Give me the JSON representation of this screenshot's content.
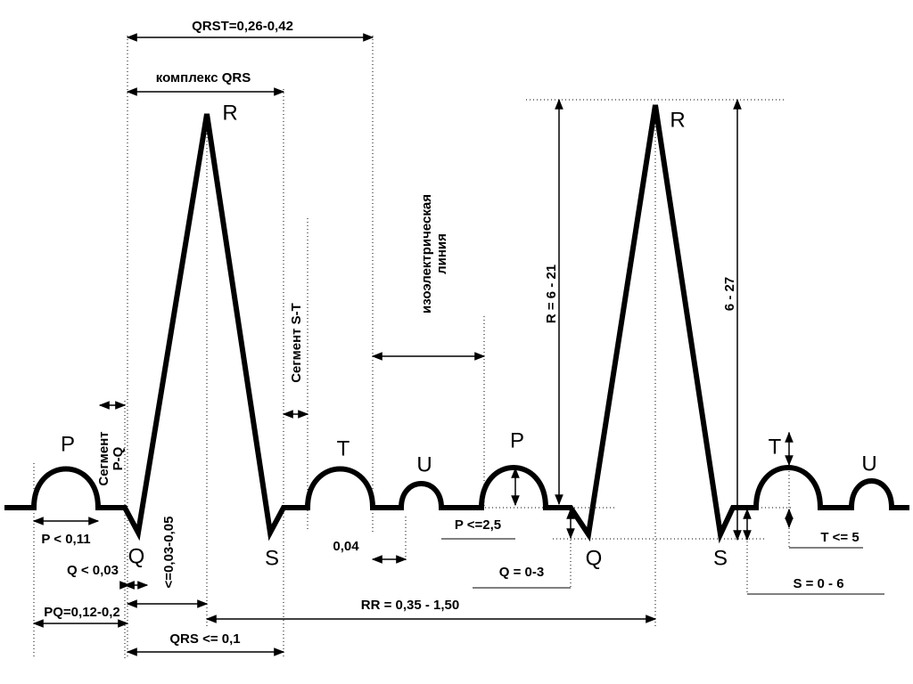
{
  "waves": [
    "P",
    "Q",
    "R",
    "S",
    "T",
    "U",
    "P",
    "Q",
    "R",
    "S",
    "T",
    "U"
  ],
  "intervals": {
    "qrst": "QRST=0,26-0,42",
    "qrs_complex": "комплекс QRS",
    "pq_segment": [
      "Сегмент",
      "P-Q"
    ],
    "st_segment": "Сегмент S-T",
    "isoelectric": [
      "изоэлектрическая",
      "линия"
    ],
    "p_duration": "P < 0,11",
    "q_duration": "Q < 0,03",
    "pq": "PQ=0,12-0,2",
    "intrinsicoid": "<=0,03-0,05",
    "qrs": "QRS <= 0,1",
    "t_u": "0,04",
    "rr": "RR = 0,35 - 1,50",
    "p_amp": "P <=2,5",
    "q_amp": "Q = 0-3",
    "r_amp": "R = 6 - 21",
    "r_amp2": "6 - 27",
    "t_amp": "T <= 5",
    "s_amp": "S = 0 - 6"
  }
}
